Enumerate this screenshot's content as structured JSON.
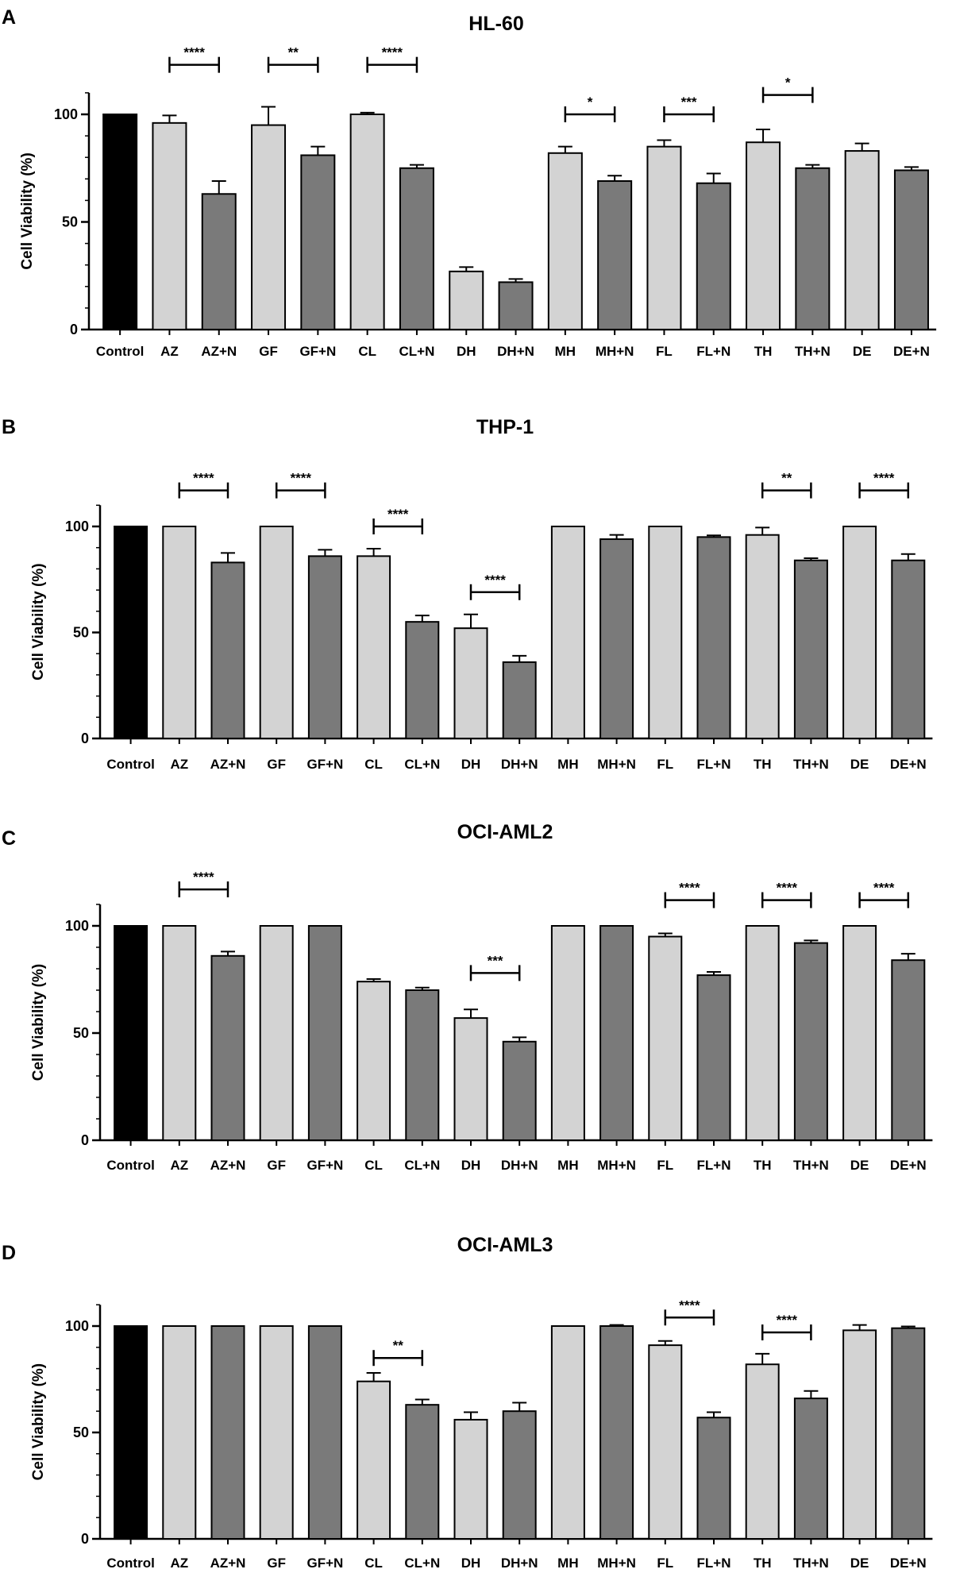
{
  "chart_data": [
    {
      "type": "bar",
      "panel": "A",
      "title": "HL-60",
      "xlabel": "",
      "ylabel": "Cell Viability (%)",
      "ylim": [
        0,
        110
      ],
      "yticks": [
        0,
        50,
        100
      ],
      "categories": [
        "Control",
        "AZ",
        "AZ+N",
        "GF",
        "GF+N",
        "CL",
        "CL+N",
        "DH",
        "DH+N",
        "MH",
        "MH+N",
        "FL",
        "FL+N",
        "TH",
        "TH+N",
        "DE",
        "DE+N"
      ],
      "values": [
        100,
        96,
        63,
        95,
        81,
        100,
        75,
        27,
        22,
        82,
        69,
        85,
        68,
        87,
        75,
        83,
        74
      ],
      "errors": [
        0,
        3.5,
        6,
        8.5,
        4,
        0.8,
        1.5,
        2,
        1.5,
        3,
        2.5,
        3,
        4.5,
        6,
        1.5,
        3.5,
        1.5
      ],
      "colors": {
        "control": "#000000",
        "drug": "#d3d3d3",
        "combo": "#7a7a7a"
      },
      "significance": [
        {
          "from": 1,
          "to": 2,
          "label": "****",
          "level": 123
        },
        {
          "from": 3,
          "to": 4,
          "label": "**",
          "level": 123
        },
        {
          "from": 5,
          "to": 6,
          "label": "****",
          "level": 123
        },
        {
          "from": 9,
          "to": 10,
          "label": "*",
          "level": 100
        },
        {
          "from": 11,
          "to": 12,
          "label": "***",
          "level": 100
        },
        {
          "from": 13,
          "to": 14,
          "label": "*",
          "level": 109
        }
      ]
    },
    {
      "type": "bar",
      "panel": "B",
      "title": "THP-1",
      "xlabel": "",
      "ylabel": "Cell Viability (%)",
      "ylim": [
        0,
        110
      ],
      "yticks": [
        0,
        50,
        100
      ],
      "categories": [
        "Control",
        "AZ",
        "AZ+N",
        "GF",
        "GF+N",
        "CL",
        "CL+N",
        "DH",
        "DH+N",
        "MH",
        "MH+N",
        "FL",
        "FL+N",
        "TH",
        "TH+N",
        "DE",
        "DE+N"
      ],
      "values": [
        100,
        100,
        83,
        100,
        86,
        86,
        55,
        52,
        36,
        100,
        94,
        100,
        95,
        96,
        84,
        100,
        84
      ],
      "errors": [
        0,
        0,
        4.5,
        0,
        3,
        3.5,
        3,
        6.5,
        3,
        0,
        2,
        0,
        0.8,
        3.5,
        1,
        0,
        3
      ],
      "colors": {
        "control": "#000000",
        "drug": "#d3d3d3",
        "combo": "#7a7a7a"
      },
      "significance": [
        {
          "from": 1,
          "to": 2,
          "label": "****",
          "level": 117
        },
        {
          "from": 3,
          "to": 4,
          "label": "****",
          "level": 117
        },
        {
          "from": 5,
          "to": 6,
          "label": "****",
          "level": 100
        },
        {
          "from": 7,
          "to": 8,
          "label": "****",
          "level": 69
        },
        {
          "from": 13,
          "to": 14,
          "label": "**",
          "level": 117
        },
        {
          "from": 15,
          "to": 16,
          "label": "****",
          "level": 117
        }
      ]
    },
    {
      "type": "bar",
      "panel": "C",
      "title": "OCI-AML2",
      "xlabel": "",
      "ylabel": "Cell Viability (%)",
      "ylim": [
        0,
        110
      ],
      "yticks": [
        0,
        50,
        100
      ],
      "categories": [
        "Control",
        "AZ",
        "AZ+N",
        "GF",
        "GF+N",
        "CL",
        "CL+N",
        "DH",
        "DH+N",
        "MH",
        "MH+N",
        "FL",
        "FL+N",
        "TH",
        "TH+N",
        "DE",
        "DE+N"
      ],
      "values": [
        100,
        100,
        86,
        100,
        100,
        74,
        70,
        57,
        46,
        100,
        100,
        95,
        77,
        100,
        92,
        100,
        84
      ],
      "errors": [
        0,
        0,
        2,
        0,
        0,
        1.2,
        1.2,
        4,
        2,
        0,
        0,
        1.5,
        1.5,
        0,
        1.2,
        0,
        3
      ],
      "colors": {
        "control": "#000000",
        "drug": "#d3d3d3",
        "combo": "#7a7a7a"
      },
      "significance": [
        {
          "from": 1,
          "to": 2,
          "label": "****",
          "level": 117
        },
        {
          "from": 7,
          "to": 8,
          "label": "***",
          "level": 78
        },
        {
          "from": 11,
          "to": 12,
          "label": "****",
          "level": 112
        },
        {
          "from": 13,
          "to": 14,
          "label": "****",
          "level": 112
        },
        {
          "from": 15,
          "to": 16,
          "label": "****",
          "level": 112
        }
      ]
    },
    {
      "type": "bar",
      "panel": "D",
      "title": "OCI-AML3",
      "xlabel": "",
      "ylabel": "Cell Viability (%)",
      "ylim": [
        0,
        110
      ],
      "yticks": [
        0,
        50,
        100
      ],
      "categories": [
        "Control",
        "AZ",
        "AZ+N",
        "GF",
        "GF+N",
        "CL",
        "CL+N",
        "DH",
        "DH+N",
        "MH",
        "MH+N",
        "FL",
        "FL+N",
        "TH",
        "TH+N",
        "DE",
        "DE+N"
      ],
      "values": [
        100,
        100,
        100,
        100,
        100,
        74,
        63,
        56,
        60,
        100,
        100,
        91,
        57,
        82,
        66,
        98,
        99
      ],
      "errors": [
        0,
        0,
        0,
        0,
        0,
        4,
        2.5,
        3.5,
        4,
        0,
        0.5,
        2,
        2.5,
        5,
        3.5,
        2.5,
        0.8
      ],
      "colors": {
        "control": "#000000",
        "drug": "#d3d3d3",
        "combo": "#7a7a7a"
      },
      "significance": [
        {
          "from": 5,
          "to": 6,
          "label": "**",
          "level": 85
        },
        {
          "from": 11,
          "to": 12,
          "label": "****",
          "level": 104
        },
        {
          "from": 13,
          "to": 14,
          "label": "****",
          "level": 97
        }
      ]
    }
  ]
}
